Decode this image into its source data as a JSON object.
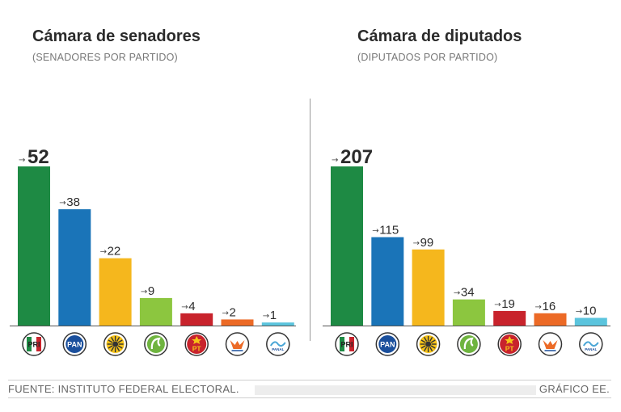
{
  "chart_data": [
    {
      "type": "bar",
      "title": "Cámara de senadores",
      "subtitle": "(SENADORES POR PARTIDO)",
      "categories": [
        "PRI",
        "PAN",
        "PRD",
        "PVEM",
        "PT",
        "MC",
        "PANAL"
      ],
      "values": [
        52,
        38,
        22,
        9,
        4,
        2,
        1
      ],
      "value_labels": [
        "52",
        "38",
        "22",
        "9",
        "4",
        "2",
        "1"
      ],
      "colors": [
        "#1e8a44",
        "#1a74b8",
        "#f5b71d",
        "#8cc63f",
        "#c8232c",
        "#ec6a26",
        "#5bc4dd"
      ],
      "ylim": [
        0,
        52
      ],
      "arrow": "→",
      "xlabel": "",
      "ylabel": "",
      "grid": false
    },
    {
      "type": "bar",
      "title": "Cámara de diputados",
      "subtitle": "(DIPUTADOS POR PARTIDO)",
      "categories": [
        "PRI",
        "PAN",
        "PRD",
        "PVEM",
        "PT",
        "MC",
        "PANAL"
      ],
      "values": [
        207,
        115,
        99,
        34,
        19,
        16,
        10
      ],
      "value_labels": [
        "207",
        "115",
        "99",
        "34",
        "19",
        "16",
        "10"
      ],
      "colors": [
        "#1e8a44",
        "#1a74b8",
        "#f5b71d",
        "#8cc63f",
        "#c8232c",
        "#ec6a26",
        "#5bc4dd"
      ],
      "ylim": [
        0,
        207
      ],
      "arrow": "→",
      "xlabel": "",
      "ylabel": "",
      "grid": false
    }
  ],
  "logos": {
    "PRI": "PRI",
    "PAN": "PAN",
    "PT": "PT",
    "PANAL": "PANAL"
  },
  "footer": {
    "source": "FUENTE: INSTITUTO FEDERAL ELECTORAL.",
    "credit": "GRÁFICO EE."
  }
}
